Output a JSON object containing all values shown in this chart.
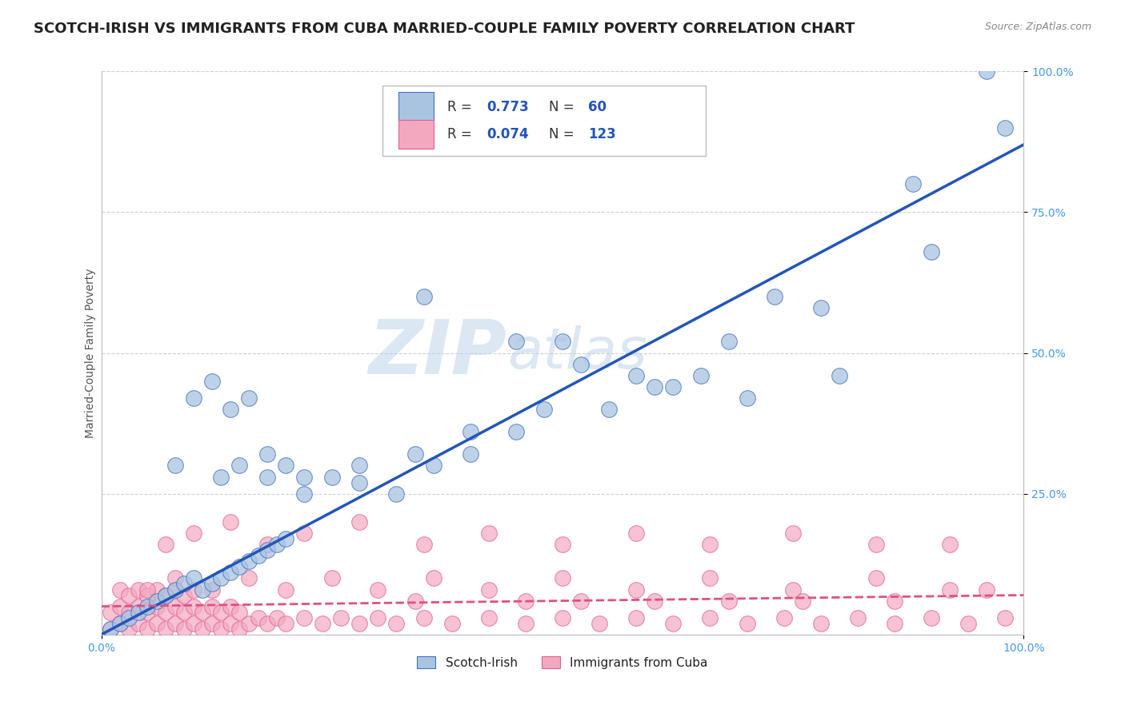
{
  "title": "SCOTCH-IRISH VS IMMIGRANTS FROM CUBA MARRIED-COUPLE FAMILY POVERTY CORRELATION CHART",
  "source": "Source: ZipAtlas.com",
  "ylabel": "Married-Couple Family Poverty",
  "xlim": [
    0,
    1
  ],
  "ylim": [
    0,
    1
  ],
  "ytick_labels": [
    "25.0%",
    "50.0%",
    "75.0%",
    "100.0%"
  ],
  "ytick_positions": [
    0.25,
    0.5,
    0.75,
    1.0
  ],
  "blue_color": "#A8C4E0",
  "pink_color": "#F4A8C0",
  "blue_edge_color": "#4472C4",
  "pink_edge_color": "#E06090",
  "blue_line_color": "#2255BB",
  "pink_line_color": "#E05080",
  "watermark_zip": "ZIP",
  "watermark_atlas": "atlas",
  "title_fontsize": 13,
  "axis_label_fontsize": 10,
  "tick_label_color": "#4499EE",
  "background_color": "#FFFFFF",
  "grid_color": "#CCCCCC",
  "blue_scatter_x": [
    0.01,
    0.02,
    0.03,
    0.04,
    0.05,
    0.06,
    0.07,
    0.08,
    0.09,
    0.1,
    0.11,
    0.12,
    0.13,
    0.14,
    0.15,
    0.16,
    0.17,
    0.18,
    0.19,
    0.2,
    0.08,
    0.1,
    0.12,
    0.14,
    0.16,
    0.18,
    0.2,
    0.22,
    0.25,
    0.28,
    0.32,
    0.36,
    0.4,
    0.45,
    0.5,
    0.55,
    0.6,
    0.65,
    0.7,
    0.8,
    0.35,
    0.45,
    0.52,
    0.62,
    0.73,
    0.88,
    0.96,
    0.98,
    0.13,
    0.15,
    0.18,
    0.22,
    0.28,
    0.34,
    0.4,
    0.48,
    0.58,
    0.68,
    0.78,
    0.9
  ],
  "blue_scatter_y": [
    0.01,
    0.02,
    0.03,
    0.04,
    0.05,
    0.06,
    0.07,
    0.08,
    0.09,
    0.1,
    0.08,
    0.09,
    0.1,
    0.11,
    0.12,
    0.13,
    0.14,
    0.15,
    0.16,
    0.17,
    0.3,
    0.42,
    0.45,
    0.4,
    0.42,
    0.28,
    0.3,
    0.25,
    0.28,
    0.27,
    0.25,
    0.3,
    0.32,
    0.36,
    0.52,
    0.4,
    0.44,
    0.46,
    0.42,
    0.46,
    0.6,
    0.52,
    0.48,
    0.44,
    0.6,
    0.8,
    1.0,
    0.9,
    0.28,
    0.3,
    0.32,
    0.28,
    0.3,
    0.32,
    0.36,
    0.4,
    0.46,
    0.52,
    0.58,
    0.68
  ],
  "pink_scatter_x": [
    0.01,
    0.01,
    0.02,
    0.02,
    0.02,
    0.03,
    0.03,
    0.03,
    0.04,
    0.04,
    0.04,
    0.05,
    0.05,
    0.05,
    0.06,
    0.06,
    0.06,
    0.07,
    0.07,
    0.07,
    0.08,
    0.08,
    0.08,
    0.09,
    0.09,
    0.09,
    0.1,
    0.1,
    0.1,
    0.11,
    0.11,
    0.12,
    0.12,
    0.13,
    0.13,
    0.14,
    0.14,
    0.15,
    0.15,
    0.16,
    0.17,
    0.18,
    0.19,
    0.2,
    0.22,
    0.24,
    0.26,
    0.28,
    0.3,
    0.32,
    0.35,
    0.38,
    0.42,
    0.46,
    0.5,
    0.54,
    0.58,
    0.62,
    0.66,
    0.7,
    0.74,
    0.78,
    0.82,
    0.86,
    0.9,
    0.94,
    0.98,
    0.07,
    0.1,
    0.14,
    0.18,
    0.22,
    0.28,
    0.35,
    0.42,
    0.5,
    0.58,
    0.66,
    0.75,
    0.84,
    0.92,
    0.05,
    0.08,
    0.12,
    0.16,
    0.2,
    0.25,
    0.3,
    0.36,
    0.42,
    0.5,
    0.58,
    0.66,
    0.75,
    0.84,
    0.92,
    0.96,
    0.34,
    0.46,
    0.52,
    0.6,
    0.68,
    0.76,
    0.86
  ],
  "pink_scatter_y": [
    0.01,
    0.04,
    0.02,
    0.05,
    0.08,
    0.01,
    0.04,
    0.07,
    0.02,
    0.05,
    0.08,
    0.01,
    0.04,
    0.07,
    0.02,
    0.05,
    0.08,
    0.01,
    0.04,
    0.07,
    0.02,
    0.05,
    0.08,
    0.01,
    0.04,
    0.07,
    0.02,
    0.05,
    0.08,
    0.01,
    0.04,
    0.02,
    0.05,
    0.01,
    0.04,
    0.02,
    0.05,
    0.01,
    0.04,
    0.02,
    0.03,
    0.02,
    0.03,
    0.02,
    0.03,
    0.02,
    0.03,
    0.02,
    0.03,
    0.02,
    0.03,
    0.02,
    0.03,
    0.02,
    0.03,
    0.02,
    0.03,
    0.02,
    0.03,
    0.02,
    0.03,
    0.02,
    0.03,
    0.02,
    0.03,
    0.02,
    0.03,
    0.16,
    0.18,
    0.2,
    0.16,
    0.18,
    0.2,
    0.16,
    0.18,
    0.16,
    0.18,
    0.16,
    0.18,
    0.16,
    0.16,
    0.08,
    0.1,
    0.08,
    0.1,
    0.08,
    0.1,
    0.08,
    0.1,
    0.08,
    0.1,
    0.08,
    0.1,
    0.08,
    0.1,
    0.08,
    0.08,
    0.06,
    0.06,
    0.06,
    0.06,
    0.06,
    0.06,
    0.06
  ],
  "blue_line_x0": 0.0,
  "blue_line_y0": 0.0,
  "blue_line_x1": 1.0,
  "blue_line_y1": 0.87,
  "pink_line_x0": 0.0,
  "pink_line_y0": 0.05,
  "pink_line_x1": 1.0,
  "pink_line_y1": 0.07
}
